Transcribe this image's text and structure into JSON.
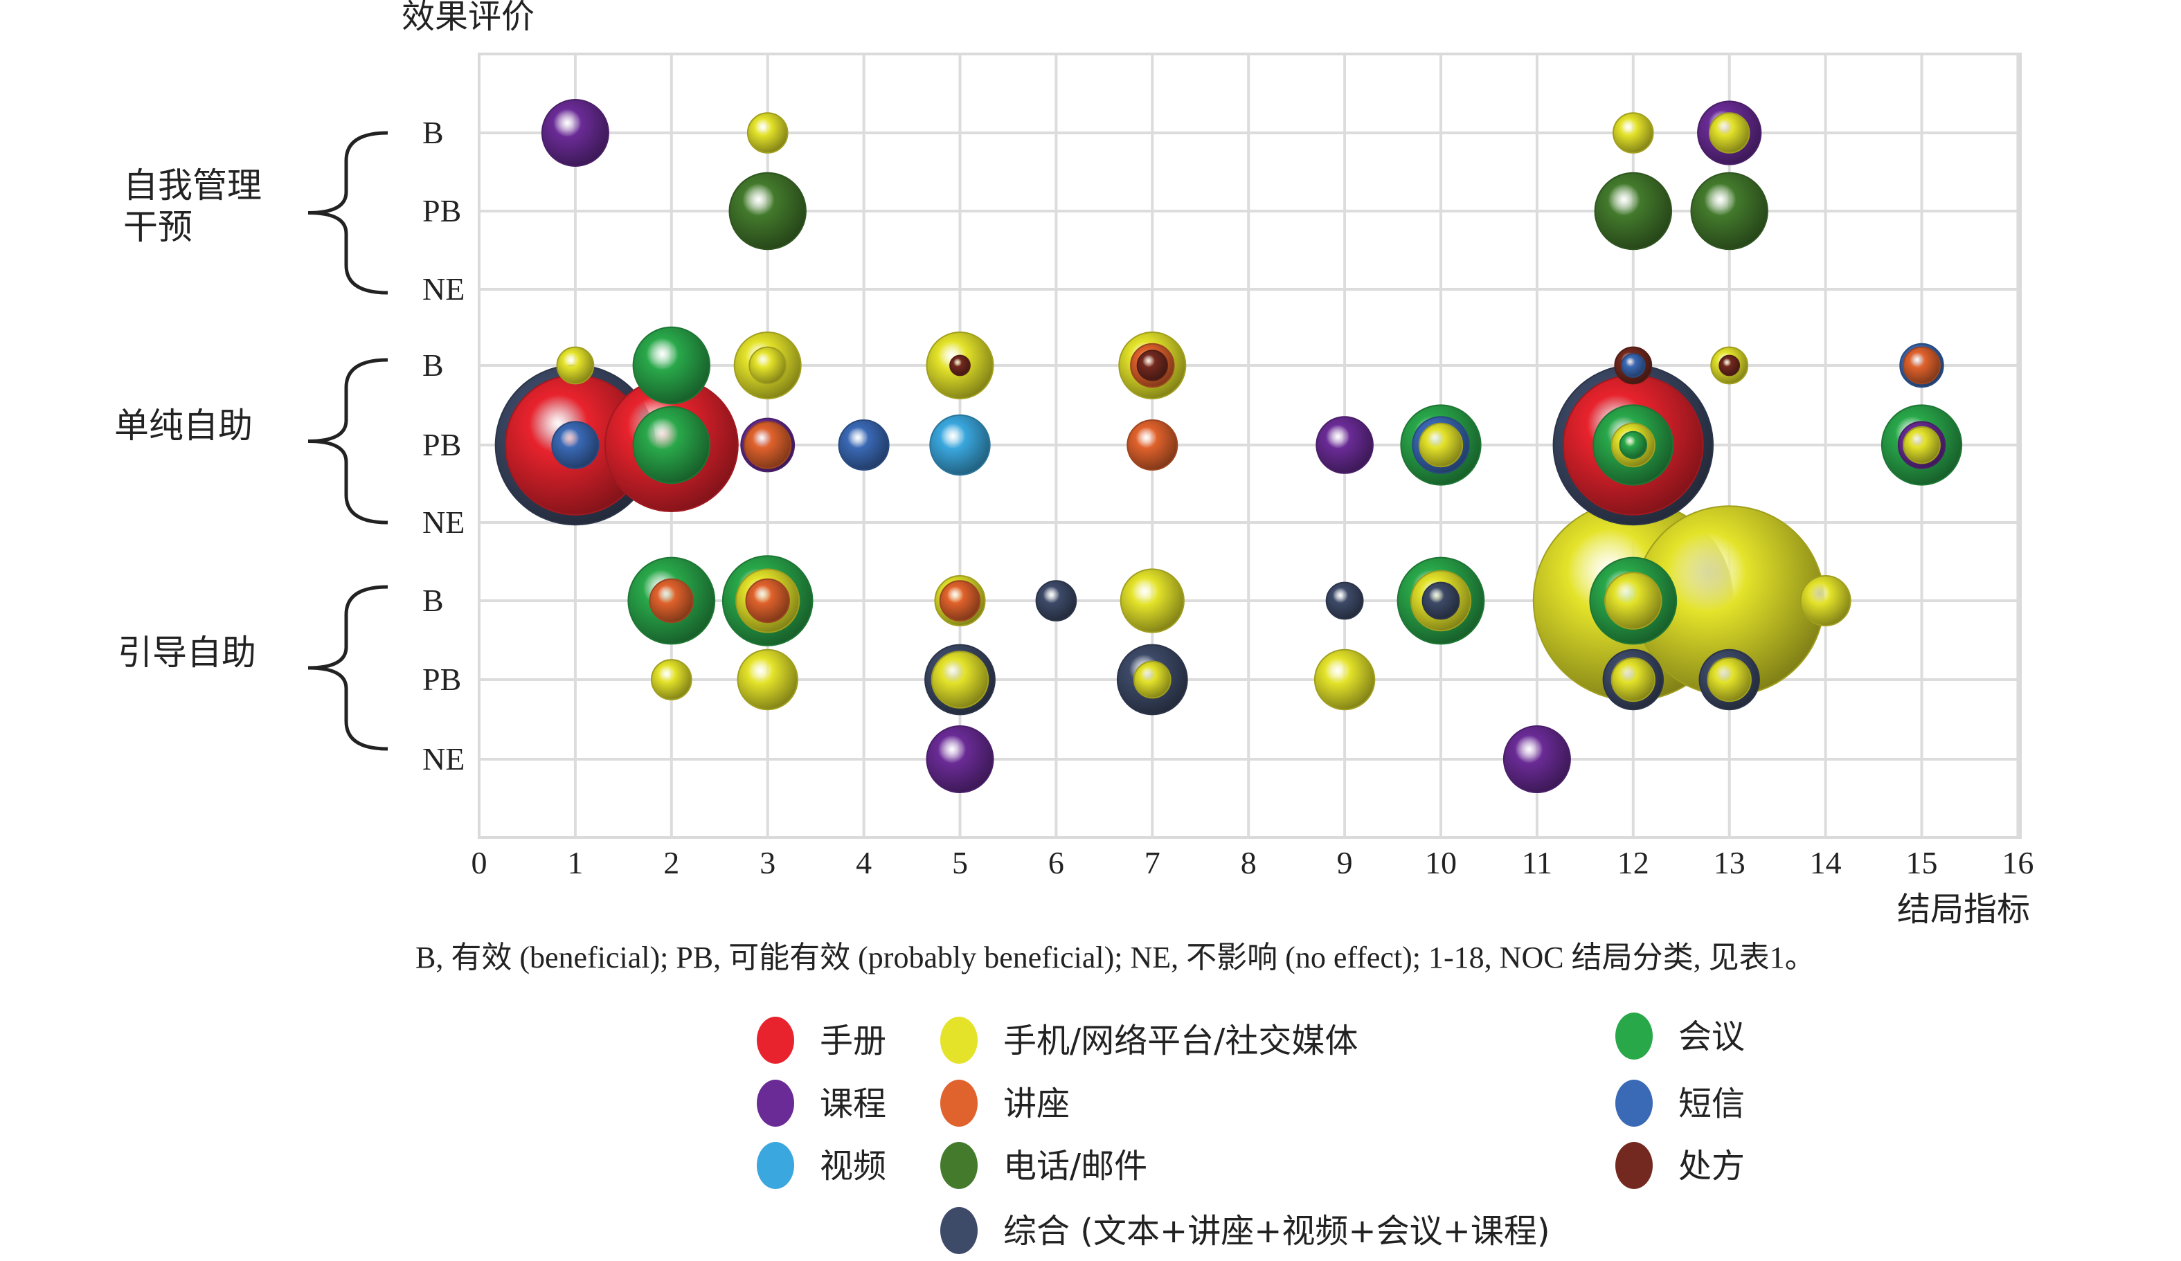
{
  "chart_data": {
    "type": "scatter",
    "subtype": "bubble",
    "y_axis_title": "效果评价",
    "x_axis_title": "结局指标",
    "xlim": [
      0,
      16
    ],
    "xticks": [
      0,
      1,
      2,
      3,
      4,
      5,
      6,
      7,
      8,
      9,
      10,
      11,
      12,
      13,
      14,
      15,
      16
    ],
    "grid": true,
    "footnote": "B, 有效 (beneficial); PB, 可能有效 (probably beneficial); NE, 不影响 (no effect); 1-18, NOC 结局分类, 见表1。",
    "groups": [
      {
        "name": "自我管理干预",
        "lines": [
          "自我管理",
          "干预"
        ],
        "levels": [
          "B",
          "PB",
          "NE"
        ]
      },
      {
        "name": "单纯自助",
        "lines": [
          "单纯自助"
        ],
        "levels": [
          "B",
          "PB",
          "NE"
        ]
      },
      {
        "name": "引导自助",
        "lines": [
          "引导自助"
        ],
        "levels": [
          "B",
          "PB",
          "NE"
        ]
      }
    ],
    "legend_position": "bottom",
    "legend": [
      {
        "name": "手册",
        "color": "#e8232d"
      },
      {
        "name": "手机/网络平台/社交媒体",
        "color": "#e4e32a"
      },
      {
        "name": "会议",
        "color": "#29a84a"
      },
      {
        "name": "课程",
        "color": "#6a2b96"
      },
      {
        "name": "讲座",
        "color": "#e0622c"
      },
      {
        "name": "短信",
        "color": "#3a69b5"
      },
      {
        "name": "视频",
        "color": "#3aa7de"
      },
      {
        "name": "电话/邮件",
        "color": "#437a2c"
      },
      {
        "name": "处方",
        "color": "#73291f"
      },
      {
        "name": "综合 (文本+讲座+视频+会议+课程)",
        "color": "#3d4a68"
      }
    ],
    "points": [
      {
        "group": "自我管理干预",
        "level": "B",
        "x": 1,
        "category": "课程",
        "size": 1.0
      },
      {
        "group": "自我管理干预",
        "level": "B",
        "x": 3,
        "category": "手机/网络平台/社交媒体",
        "size": 0.6
      },
      {
        "group": "自我管理干预",
        "level": "B",
        "x": 12,
        "category": "手机/网络平台/社交媒体",
        "size": 0.6
      },
      {
        "group": "自我管理干预",
        "level": "B",
        "x": 13,
        "category": "课程",
        "size": 0.95
      },
      {
        "group": "自我管理干预",
        "level": "B",
        "x": 13,
        "category": "手机/网络平台/社交媒体",
        "size": 0.6
      },
      {
        "group": "自我管理干预",
        "level": "PB",
        "x": 3,
        "category": "电话/邮件",
        "size": 1.15
      },
      {
        "group": "自我管理干预",
        "level": "PB",
        "x": 12,
        "category": "电话/邮件",
        "size": 1.15
      },
      {
        "group": "自我管理干预",
        "level": "PB",
        "x": 13,
        "category": "电话/邮件",
        "size": 1.15
      },
      {
        "group": "单纯自助",
        "level": "B",
        "x": 1,
        "category": "手机/网络平台/社交媒体",
        "size": 0.55
      },
      {
        "group": "单纯自助",
        "level": "B",
        "x": 2,
        "category": "会议",
        "size": 1.15
      },
      {
        "group": "单纯自助",
        "level": "B",
        "x": 3,
        "category": "手机/网络平台/社交媒体",
        "size": 1.0
      },
      {
        "group": "单纯自助",
        "level": "B",
        "x": 3,
        "category": "手机/网络平台/社交媒体",
        "size": 0.55
      },
      {
        "group": "单纯自助",
        "level": "B",
        "x": 5,
        "category": "手机/网络平台/社交媒体",
        "size": 1.0
      },
      {
        "group": "单纯自助",
        "level": "B",
        "x": 5,
        "category": "处方",
        "size": 0.3
      },
      {
        "group": "单纯自助",
        "level": "B",
        "x": 7,
        "category": "手机/网络平台/社交媒体",
        "size": 1.0
      },
      {
        "group": "单纯自助",
        "level": "B",
        "x": 7,
        "category": "讲座",
        "size": 0.65
      },
      {
        "group": "单纯自助",
        "level": "B",
        "x": 7,
        "category": "处方",
        "size": 0.45
      },
      {
        "group": "单纯自助",
        "level": "B",
        "x": 12,
        "category": "处方",
        "size": 0.55
      },
      {
        "group": "单纯自助",
        "level": "B",
        "x": 12,
        "category": "短信",
        "size": 0.35
      },
      {
        "group": "单纯自助",
        "level": "B",
        "x": 13,
        "category": "手机/网络平台/社交媒体",
        "size": 0.55
      },
      {
        "group": "单纯自助",
        "level": "B",
        "x": 13,
        "category": "处方",
        "size": 0.3
      },
      {
        "group": "单纯自助",
        "level": "B",
        "x": 15,
        "category": "短信",
        "size": 0.65
      },
      {
        "group": "单纯自助",
        "level": "B",
        "x": 15,
        "category": "讲座",
        "size": 0.55
      },
      {
        "group": "单纯自助",
        "level": "PB",
        "x": 1,
        "category": "综合 (文本+讲座+视频+会议+课程)",
        "size": 2.4
      },
      {
        "group": "单纯自助",
        "level": "PB",
        "x": 1,
        "category": "手册",
        "size": 2.1
      },
      {
        "group": "单纯自助",
        "level": "PB",
        "x": 1,
        "category": "短信",
        "size": 0.7
      },
      {
        "group": "单纯自助",
        "level": "PB",
        "x": 2,
        "category": "手册",
        "size": 2.0
      },
      {
        "group": "单纯自助",
        "level": "PB",
        "x": 2,
        "category": "会议",
        "size": 1.15
      },
      {
        "group": "单纯自助",
        "level": "PB",
        "x": 3,
        "category": "课程",
        "size": 0.8
      },
      {
        "group": "单纯自助",
        "level": "PB",
        "x": 3,
        "category": "讲座",
        "size": 0.7
      },
      {
        "group": "单纯自助",
        "level": "PB",
        "x": 4,
        "category": "短信",
        "size": 0.75
      },
      {
        "group": "单纯自助",
        "level": "PB",
        "x": 5,
        "category": "视频",
        "size": 0.9
      },
      {
        "group": "单纯自助",
        "level": "PB",
        "x": 7,
        "category": "讲座",
        "size": 0.75
      },
      {
        "group": "单纯自助",
        "level": "PB",
        "x": 9,
        "category": "课程",
        "size": 0.85
      },
      {
        "group": "单纯自助",
        "level": "PB",
        "x": 10,
        "category": "会议",
        "size": 1.2
      },
      {
        "group": "单纯自助",
        "level": "PB",
        "x": 10,
        "category": "短信",
        "size": 0.85
      },
      {
        "group": "单纯自助",
        "level": "PB",
        "x": 10,
        "category": "手机/网络平台/社交媒体",
        "size": 0.65
      },
      {
        "group": "单纯自助",
        "level": "PB",
        "x": 12,
        "category": "综合 (文本+讲座+视频+会议+课程)",
        "size": 2.4
      },
      {
        "group": "单纯自助",
        "level": "PB",
        "x": 12,
        "category": "手册",
        "size": 2.1
      },
      {
        "group": "单纯自助",
        "level": "PB",
        "x": 12,
        "category": "会议",
        "size": 1.2
      },
      {
        "group": "单纯自助",
        "level": "PB",
        "x": 12,
        "category": "手机/网络平台/社交媒体",
        "size": 0.65
      },
      {
        "group": "单纯自助",
        "level": "PB",
        "x": 12,
        "category": "会议",
        "size": 0.4
      },
      {
        "group": "单纯自助",
        "level": "PB",
        "x": 15,
        "category": "会议",
        "size": 1.2
      },
      {
        "group": "单纯自助",
        "level": "PB",
        "x": 15,
        "category": "课程",
        "size": 0.7
      },
      {
        "group": "单纯自助",
        "level": "PB",
        "x": 15,
        "category": "手机/网络平台/社交媒体",
        "size": 0.55
      },
      {
        "group": "引导自助",
        "level": "B",
        "x": 2,
        "category": "会议",
        "size": 1.3
      },
      {
        "group": "引导自助",
        "level": "B",
        "x": 2,
        "category": "讲座",
        "size": 0.65
      },
      {
        "group": "引导自助",
        "level": "B",
        "x": 3,
        "category": "会议",
        "size": 1.35
      },
      {
        "group": "引导自助",
        "level": "B",
        "x": 3,
        "category": "手机/网络平台/社交媒体",
        "size": 0.95
      },
      {
        "group": "引导自助",
        "level": "B",
        "x": 3,
        "category": "讲座",
        "size": 0.65
      },
      {
        "group": "引导自助",
        "level": "B",
        "x": 5,
        "category": "手机/网络平台/社交媒体",
        "size": 0.75
      },
      {
        "group": "引导自助",
        "level": "B",
        "x": 5,
        "category": "讲座",
        "size": 0.6
      },
      {
        "group": "引导自助",
        "level": "B",
        "x": 6,
        "category": "综合 (文本+讲座+视频+会议+课程)",
        "size": 0.6
      },
      {
        "group": "引导自助",
        "level": "B",
        "x": 7,
        "category": "手机/网络平台/社交媒体",
        "size": 0.95
      },
      {
        "group": "引导自助",
        "level": "B",
        "x": 9,
        "category": "综合 (文本+讲座+视频+会议+课程)",
        "size": 0.55
      },
      {
        "group": "引导自助",
        "level": "B",
        "x": 10,
        "category": "会议",
        "size": 1.3
      },
      {
        "group": "引导自助",
        "level": "B",
        "x": 10,
        "category": "手机/网络平台/社交媒体",
        "size": 0.9
      },
      {
        "group": "引导自助",
        "level": "B",
        "x": 10,
        "category": "综合 (文本+讲座+视频+会议+课程)",
        "size": 0.55
      },
      {
        "group": "引导自助",
        "level": "B",
        "x": 12,
        "category": "手机/网络平台/社交媒体",
        "size": 3.0
      },
      {
        "group": "引导自助",
        "level": "B",
        "x": 13,
        "category": "手机/网络平台/社交媒体",
        "size": 2.85
      },
      {
        "group": "引导自助",
        "level": "B",
        "x": 12,
        "category": "会议",
        "size": 1.3
      },
      {
        "group": "引导自助",
        "level": "B",
        "x": 12,
        "category": "手机/网络平台/社交媒体",
        "size": 0.85
      },
      {
        "group": "引导自助",
        "level": "B",
        "x": 14,
        "category": "手机/网络平台/社交媒体",
        "size": 0.75
      },
      {
        "group": "引导自助",
        "level": "PB",
        "x": 2,
        "category": "手机/网络平台/社交媒体",
        "size": 0.6
      },
      {
        "group": "引导自助",
        "level": "PB",
        "x": 3,
        "category": "手机/网络平台/社交媒体",
        "size": 0.9
      },
      {
        "group": "引导自助",
        "level": "PB",
        "x": 5,
        "category": "综合 (文本+讲座+视频+会议+课程)",
        "size": 1.05
      },
      {
        "group": "引导自助",
        "level": "PB",
        "x": 5,
        "category": "手机/网络平台/社交媒体",
        "size": 0.85
      },
      {
        "group": "引导自助",
        "level": "PB",
        "x": 7,
        "category": "综合 (文本+讲座+视频+会议+课程)",
        "size": 1.05
      },
      {
        "group": "引导自助",
        "level": "PB",
        "x": 7,
        "category": "手机/网络平台/社交媒体",
        "size": 0.55
      },
      {
        "group": "引导自助",
        "level": "PB",
        "x": 9,
        "category": "手机/网络平台/社交媒体",
        "size": 0.9
      },
      {
        "group": "引导自助",
        "level": "PB",
        "x": 12,
        "category": "综合 (文本+讲座+视频+会议+课程)",
        "size": 0.9
      },
      {
        "group": "引导自助",
        "level": "PB",
        "x": 12,
        "category": "手机/网络平台/社交媒体",
        "size": 0.65
      },
      {
        "group": "引导自助",
        "level": "PB",
        "x": 13,
        "category": "综合 (文本+讲座+视频+会议+课程)",
        "size": 0.9
      },
      {
        "group": "引导自助",
        "level": "PB",
        "x": 13,
        "category": "手机/网络平台/社交媒体",
        "size": 0.65
      },
      {
        "group": "引导自助",
        "level": "NE",
        "x": 5,
        "category": "课程",
        "size": 1.0
      },
      {
        "group": "引导自助",
        "level": "NE",
        "x": 11,
        "category": "课程",
        "size": 1.0
      }
    ]
  }
}
